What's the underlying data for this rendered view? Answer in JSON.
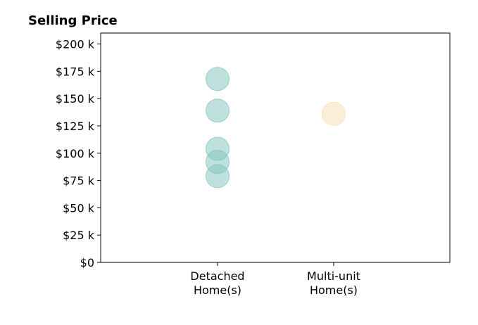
{
  "chart_data": {
    "type": "scatter",
    "title": "Selling Price",
    "xlabel": "",
    "ylabel": "",
    "categories": [
      [
        "Detached",
        "Home(s)"
      ],
      [
        "Multi-unit",
        "Home(s)"
      ]
    ],
    "ylim": [
      0,
      210000
    ],
    "yticks": [
      0,
      25000,
      50000,
      75000,
      100000,
      125000,
      150000,
      175000,
      200000
    ],
    "ytick_labels": [
      "$0",
      "$25 k",
      "$50 k",
      "$75 k",
      "$100 k",
      "$125 k",
      "$150 k",
      "$175 k",
      "$200 k"
    ],
    "grid": false,
    "series": [
      {
        "category_index": 0,
        "color": "#7fc4bc",
        "values": [
          168000,
          139000,
          104000,
          92000,
          79000
        ]
      },
      {
        "category_index": 1,
        "color": "#f5deb0",
        "values": [
          136000
        ]
      }
    ]
  }
}
